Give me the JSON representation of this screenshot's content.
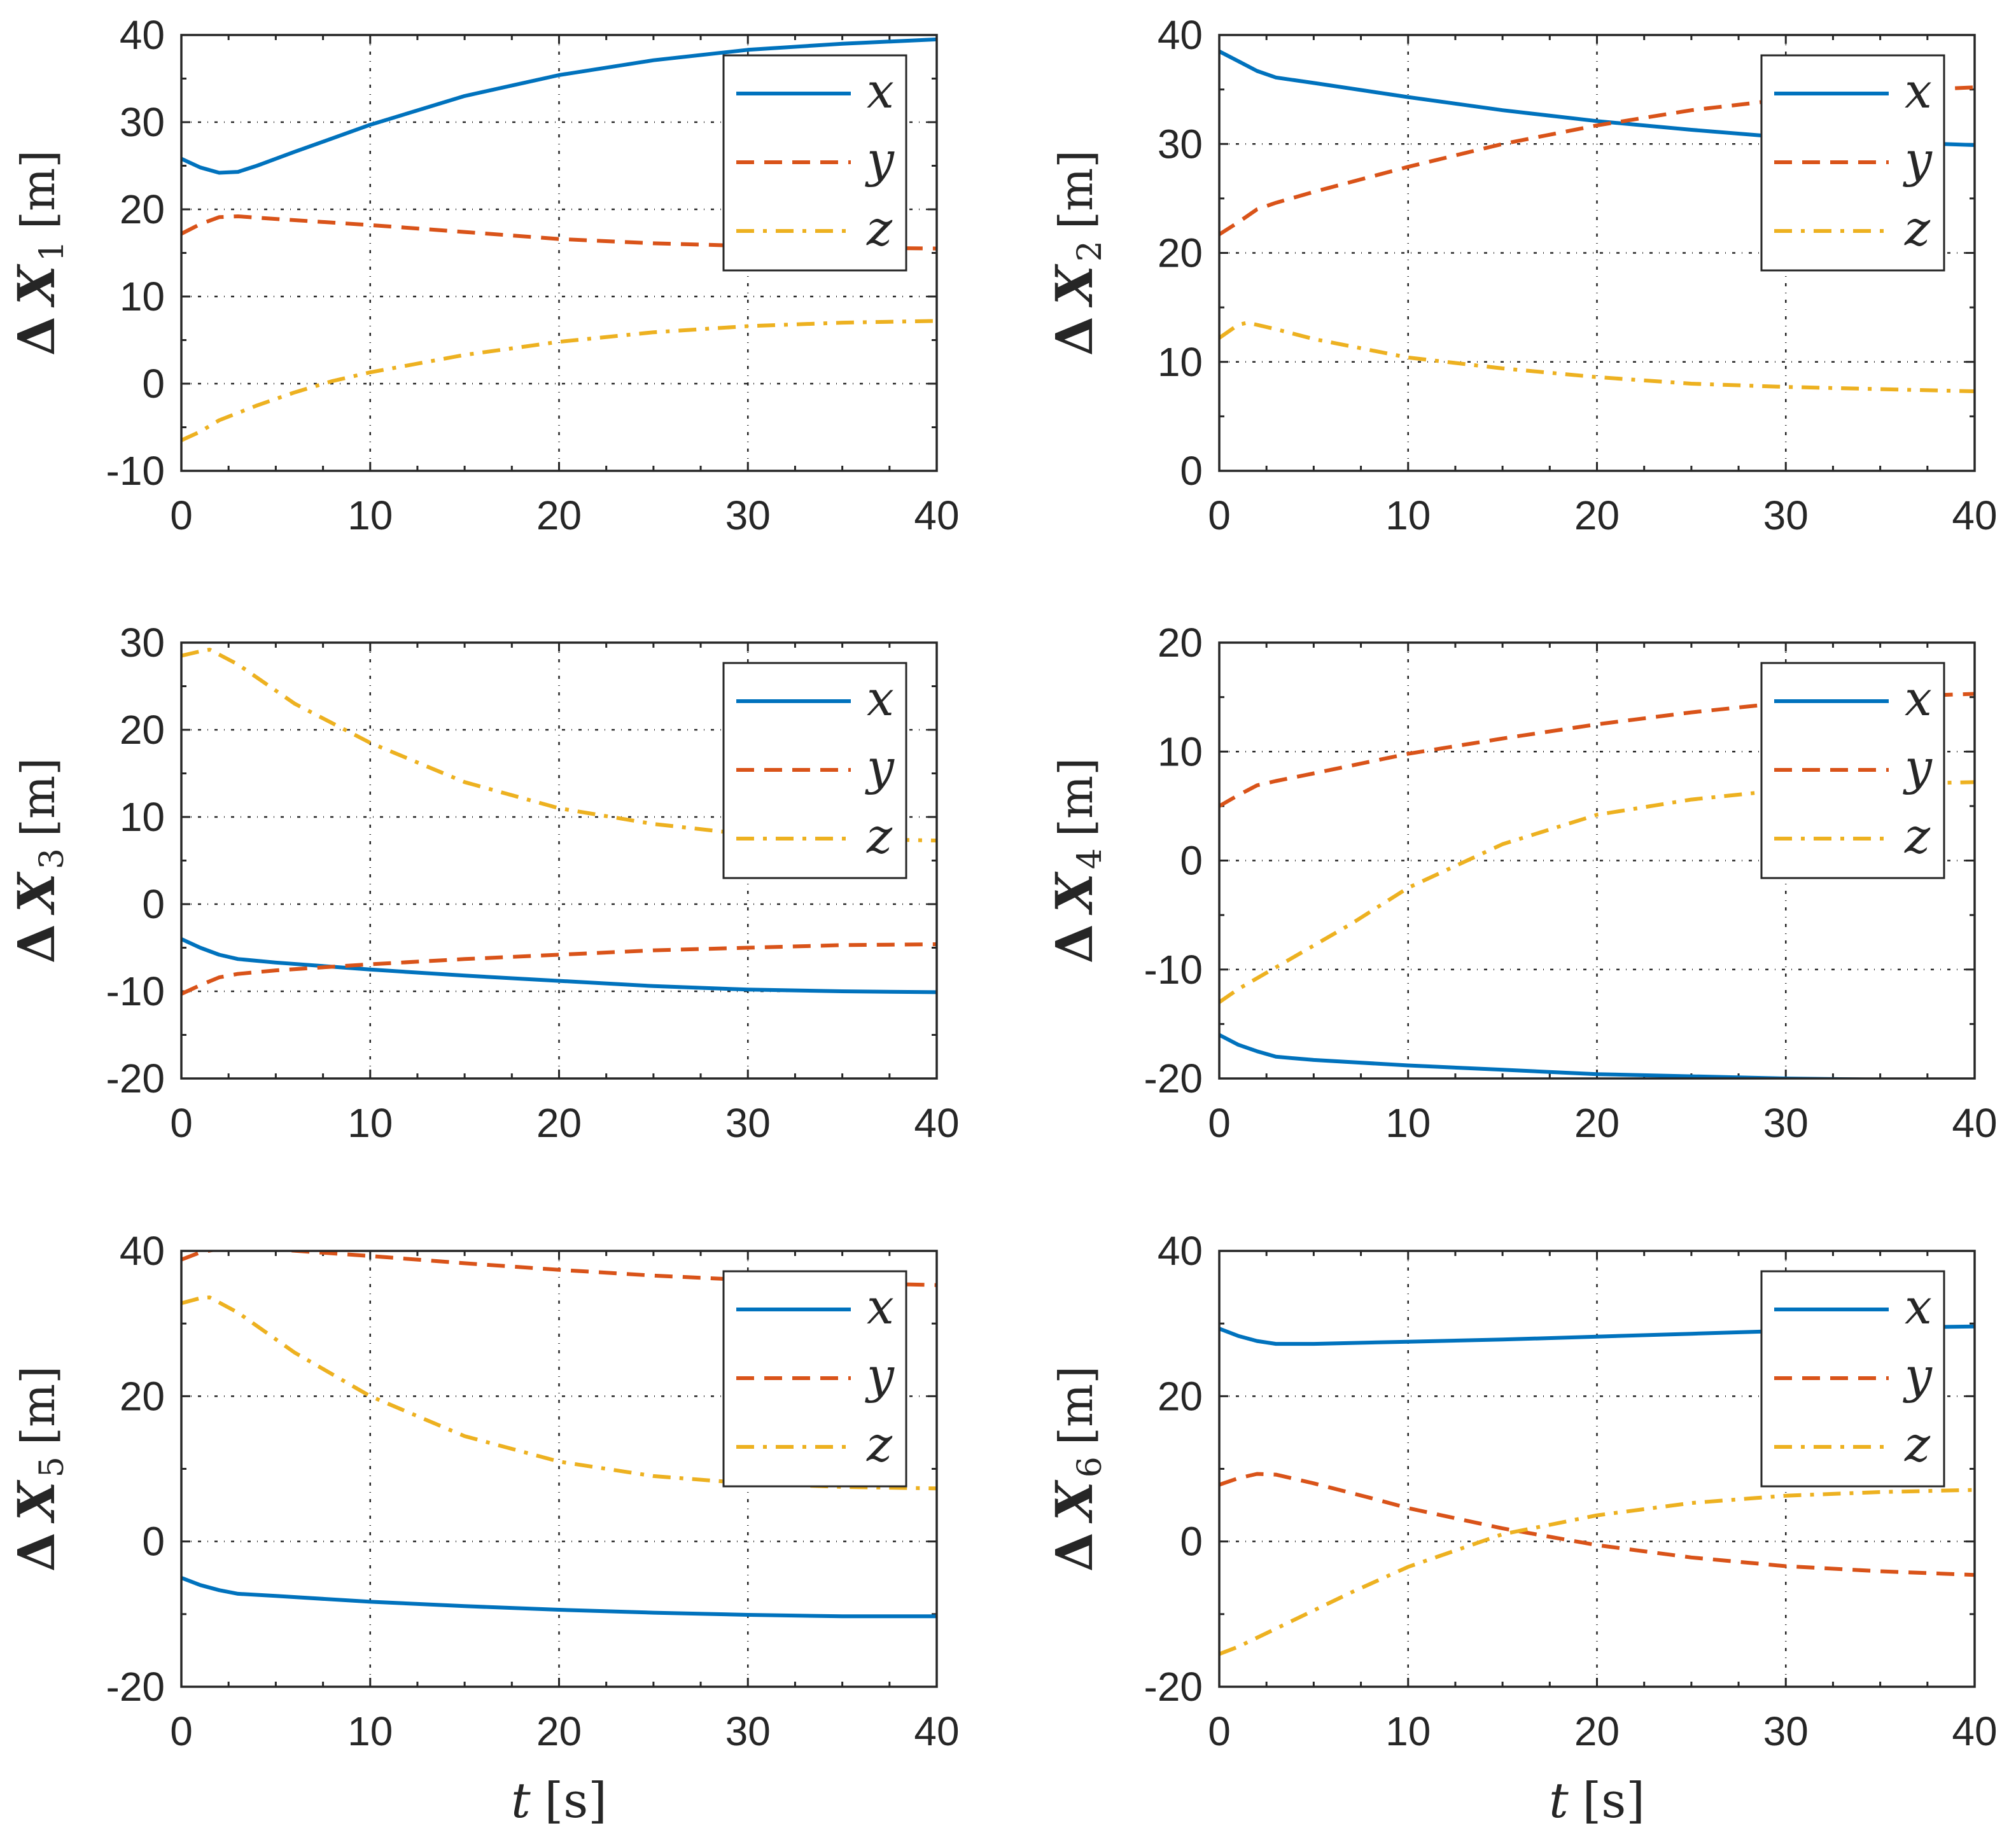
{
  "colors": {
    "x": "#0072BD",
    "y": "#D95319",
    "z": "#EDB120",
    "axis": "#262626",
    "grid": "#262626"
  },
  "chart_data": [
    {
      "type": "line",
      "ylabel": {
        "prefix": "Δ",
        "symbol": "X",
        "subscript": "1",
        "unit": "[m]"
      },
      "xlabel": null,
      "xlim": [
        0,
        40
      ],
      "ylim": [
        -10,
        40
      ],
      "xticks": [
        "0",
        "10",
        "20",
        "30",
        "40"
      ],
      "yticks": [
        "-10",
        "0",
        "10",
        "20",
        "30",
        "40"
      ],
      "grid": true,
      "legend": "top-right",
      "series": [
        {
          "name": "x",
          "x": [
            0,
            1,
            2,
            3,
            4,
            6,
            10,
            15,
            20,
            25,
            30,
            35,
            40
          ],
          "y": [
            25.8,
            24.8,
            24.2,
            24.3,
            25.0,
            26.6,
            29.7,
            33.0,
            35.4,
            37.1,
            38.3,
            39.0,
            39.5
          ]
        },
        {
          "name": "y",
          "x": [
            0,
            1,
            2,
            3,
            5,
            10,
            15,
            20,
            25,
            30,
            35,
            40
          ],
          "y": [
            17.2,
            18.3,
            19.1,
            19.2,
            18.9,
            18.2,
            17.4,
            16.6,
            16.1,
            15.8,
            15.6,
            15.5
          ]
        },
        {
          "name": "z",
          "x": [
            0,
            1,
            2,
            4,
            6,
            8,
            10,
            15,
            20,
            25,
            30,
            35,
            40
          ],
          "y": [
            -6.5,
            -5.5,
            -4.2,
            -2.5,
            -1.0,
            0.3,
            1.3,
            3.3,
            4.8,
            5.9,
            6.6,
            7.0,
            7.2
          ]
        }
      ]
    },
    {
      "type": "line",
      "ylabel": {
        "prefix": "Δ",
        "symbol": "X",
        "subscript": "2",
        "unit": "[m]"
      },
      "xlabel": null,
      "xlim": [
        0,
        40
      ],
      "ylim": [
        0,
        40
      ],
      "xticks": [
        "0",
        "10",
        "20",
        "30",
        "40"
      ],
      "yticks": [
        "0",
        "10",
        "20",
        "30",
        "40"
      ],
      "grid": true,
      "legend": "top-right",
      "series": [
        {
          "name": "x",
          "x": [
            0,
            1,
            2,
            3,
            5,
            10,
            15,
            20,
            25,
            30,
            35,
            40
          ],
          "y": [
            38.5,
            37.6,
            36.7,
            36.1,
            35.6,
            34.3,
            33.1,
            32.1,
            31.3,
            30.6,
            30.2,
            29.9
          ]
        },
        {
          "name": "y",
          "x": [
            0,
            1,
            2,
            3,
            5,
            10,
            15,
            20,
            25,
            30,
            35,
            40
          ],
          "y": [
            21.7,
            22.8,
            24.0,
            24.6,
            25.6,
            27.9,
            30.0,
            31.7,
            33.1,
            34.1,
            34.8,
            35.2
          ]
        },
        {
          "name": "z",
          "x": [
            0,
            1,
            1.5,
            3,
            5,
            10,
            15,
            20,
            25,
            30,
            35,
            40
          ],
          "y": [
            12.2,
            13.4,
            13.6,
            13.0,
            12.1,
            10.4,
            9.4,
            8.6,
            8.0,
            7.7,
            7.5,
            7.3
          ]
        }
      ]
    },
    {
      "type": "line",
      "ylabel": {
        "prefix": "Δ",
        "symbol": "X",
        "subscript": "3",
        "unit": "[m]"
      },
      "xlabel": null,
      "xlim": [
        0,
        40
      ],
      "ylim": [
        -20,
        30
      ],
      "xticks": [
        "0",
        "10",
        "20",
        "30",
        "40"
      ],
      "yticks": [
        "-20",
        "-10",
        "0",
        "10",
        "20",
        "30"
      ],
      "grid": true,
      "legend": "top-right",
      "series": [
        {
          "name": "x",
          "x": [
            0,
            1,
            2,
            3,
            5,
            10,
            15,
            20,
            25,
            30,
            35,
            40
          ],
          "y": [
            -4.0,
            -5.0,
            -5.8,
            -6.3,
            -6.7,
            -7.5,
            -8.2,
            -8.8,
            -9.4,
            -9.8,
            -10.0,
            -10.1
          ]
        },
        {
          "name": "y",
          "x": [
            0,
            1,
            2,
            3,
            5,
            10,
            15,
            20,
            25,
            30,
            35,
            40
          ],
          "y": [
            -10.3,
            -9.3,
            -8.4,
            -8.0,
            -7.6,
            -6.9,
            -6.3,
            -5.8,
            -5.3,
            -5.0,
            -4.7,
            -4.6
          ]
        },
        {
          "name": "z",
          "x": [
            0,
            1,
            1.5,
            3,
            6,
            10,
            15,
            20,
            25,
            30,
            35,
            40
          ],
          "y": [
            28.5,
            29.0,
            29.2,
            27.5,
            23.0,
            18.5,
            14.0,
            11.0,
            9.2,
            8.0,
            7.5,
            7.3
          ]
        }
      ]
    },
    {
      "type": "line",
      "ylabel": {
        "prefix": "Δ",
        "symbol": "X",
        "subscript": "4",
        "unit": "[m]"
      },
      "xlabel": null,
      "xlim": [
        0,
        40
      ],
      "ylim": [
        -20,
        20
      ],
      "xticks": [
        "0",
        "10",
        "20",
        "30",
        "40"
      ],
      "yticks": [
        "-20",
        "-10",
        "0",
        "10",
        "20"
      ],
      "grid": true,
      "legend": "top-right",
      "series": [
        {
          "name": "x",
          "x": [
            0,
            1,
            2,
            3,
            5,
            10,
            15,
            20,
            25,
            30,
            35,
            40
          ],
          "y": [
            -16.0,
            -16.9,
            -17.5,
            -18.0,
            -18.3,
            -18.8,
            -19.2,
            -19.6,
            -19.8,
            -20.0,
            -20.1,
            -20.1
          ]
        },
        {
          "name": "y",
          "x": [
            0,
            1,
            2,
            3,
            5,
            10,
            15,
            20,
            25,
            30,
            35,
            40
          ],
          "y": [
            5.0,
            6.0,
            6.9,
            7.3,
            8.0,
            9.8,
            11.2,
            12.5,
            13.6,
            14.5,
            15.0,
            15.3
          ]
        },
        {
          "name": "z",
          "x": [
            0,
            1,
            3,
            5,
            7,
            10,
            15,
            20,
            25,
            30,
            35,
            40
          ],
          "y": [
            -13.0,
            -11.8,
            -9.8,
            -7.8,
            -5.8,
            -2.5,
            1.5,
            4.2,
            5.6,
            6.5,
            7.0,
            7.2
          ]
        }
      ]
    },
    {
      "type": "line",
      "ylabel": {
        "prefix": "Δ",
        "symbol": "X",
        "subscript": "5",
        "unit": "[m]"
      },
      "xlabel": {
        "symbol": "t",
        "unit": "[s]"
      },
      "xlim": [
        0,
        40
      ],
      "ylim": [
        -20,
        40
      ],
      "xticks": [
        "0",
        "10",
        "20",
        "30",
        "40"
      ],
      "yticks": [
        "-20",
        "0",
        "20",
        "40"
      ],
      "grid": true,
      "legend": "top-right",
      "series": [
        {
          "name": "x",
          "x": [
            0,
            1,
            2,
            3,
            5,
            10,
            15,
            20,
            25,
            30,
            35,
            40
          ],
          "y": [
            -5.0,
            -6.0,
            -6.7,
            -7.2,
            -7.5,
            -8.3,
            -8.9,
            -9.4,
            -9.8,
            -10.1,
            -10.3,
            -10.3
          ]
        },
        {
          "name": "y",
          "x": [
            0,
            1,
            2,
            3,
            5,
            10,
            15,
            20,
            25,
            30,
            35,
            40
          ],
          "y": [
            38.8,
            39.8,
            40.3,
            40.4,
            40.2,
            39.3,
            38.3,
            37.4,
            36.6,
            36.0,
            35.6,
            35.3
          ]
        },
        {
          "name": "z",
          "x": [
            0,
            1,
            1.5,
            3,
            6,
            10,
            15,
            20,
            25,
            30,
            35,
            40
          ],
          "y": [
            32.8,
            33.5,
            33.6,
            31.5,
            26.0,
            20.0,
            14.5,
            11.0,
            9.0,
            8.0,
            7.5,
            7.3
          ]
        }
      ]
    },
    {
      "type": "line",
      "ylabel": {
        "prefix": "Δ",
        "symbol": "X",
        "subscript": "6",
        "unit": "[m]"
      },
      "xlabel": {
        "symbol": "t",
        "unit": "[s]"
      },
      "xlim": [
        0,
        40
      ],
      "ylim": [
        -20,
        40
      ],
      "xticks": [
        "0",
        "10",
        "20",
        "30",
        "40"
      ],
      "yticks": [
        "-20",
        "0",
        "20",
        "40"
      ],
      "grid": true,
      "legend": "top-right",
      "series": [
        {
          "name": "x",
          "x": [
            0,
            1,
            2,
            3,
            5,
            10,
            15,
            20,
            25,
            30,
            35,
            40
          ],
          "y": [
            29.3,
            28.3,
            27.6,
            27.2,
            27.2,
            27.5,
            27.8,
            28.2,
            28.6,
            29.0,
            29.4,
            29.6
          ]
        },
        {
          "name": "y",
          "x": [
            0,
            1,
            2,
            3,
            5,
            8,
            10,
            15,
            20,
            25,
            30,
            35,
            40
          ],
          "y": [
            7.8,
            8.7,
            9.3,
            9.2,
            8.0,
            6.0,
            4.6,
            1.8,
            -0.5,
            -2.2,
            -3.4,
            -4.1,
            -4.6
          ]
        },
        {
          "name": "z",
          "x": [
            0,
            1,
            3,
            5,
            7,
            10,
            15,
            20,
            25,
            30,
            35,
            40
          ],
          "y": [
            -15.5,
            -14.5,
            -12.0,
            -9.5,
            -7.0,
            -3.5,
            1.0,
            3.6,
            5.3,
            6.3,
            6.8,
            7.1
          ]
        }
      ]
    }
  ]
}
